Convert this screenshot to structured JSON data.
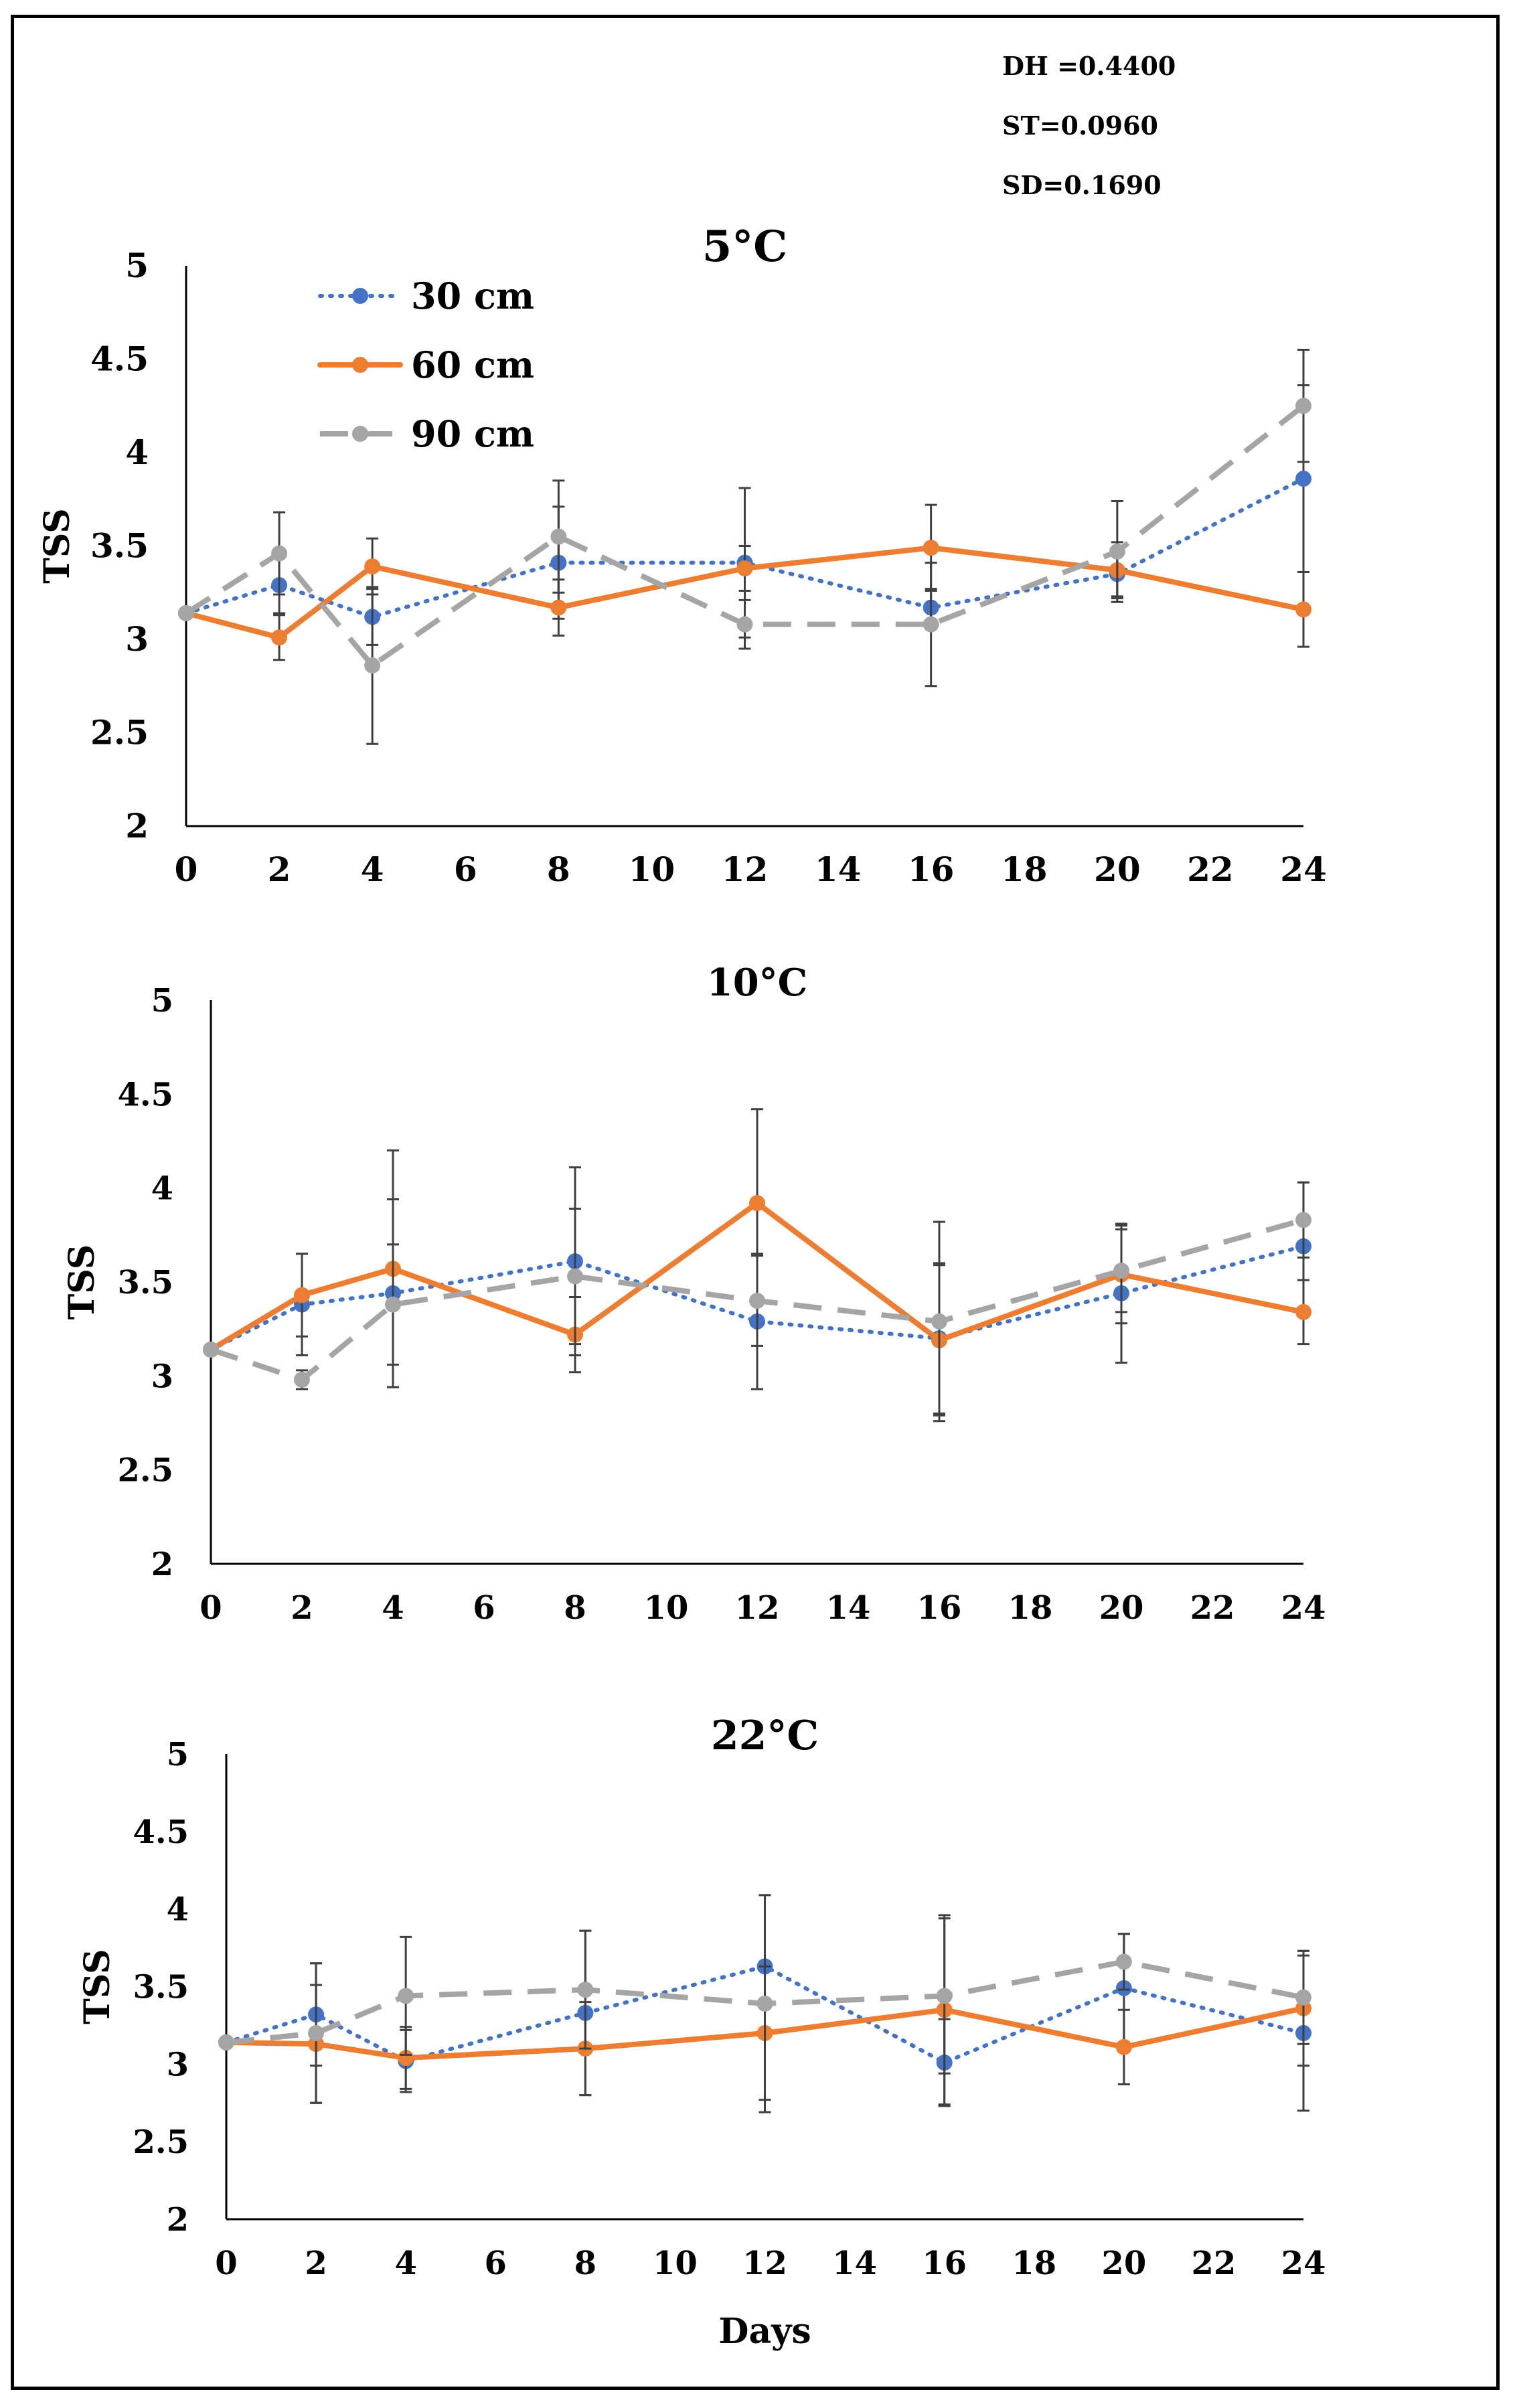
{
  "stats": {
    "dh": "DH =0.4400",
    "st": "ST=0.0960",
    "sd": "SD=0.1690"
  },
  "colors": {
    "s30": "#4472C4",
    "s60": "#ED7D31",
    "s90": "#A5A5A5",
    "axis": "#000000",
    "error_bar": "#404040"
  },
  "legend": [
    {
      "name": "30 cm",
      "style": "dotted",
      "color": "#4472C4"
    },
    {
      "name": "60 cm",
      "style": "solid",
      "color": "#ED7D31"
    },
    {
      "name": "90 cm",
      "style": "dashed",
      "color": "#A5A5A5"
    }
  ],
  "chart_data": [
    {
      "type": "line",
      "title": "5°C",
      "xlabel": "",
      "ylabel": "TSS",
      "xlim": [
        0,
        24
      ],
      "ylim": [
        2,
        5
      ],
      "xticks": [
        0,
        2,
        4,
        6,
        8,
        10,
        12,
        14,
        16,
        18,
        20,
        22,
        24
      ],
      "yticks": [
        2,
        2.5,
        3,
        3.5,
        4,
        4.5,
        5
      ],
      "x": [
        0,
        2,
        4,
        8,
        12,
        16,
        20,
        24
      ],
      "series": [
        {
          "name": "30 cm",
          "values": [
            3.14,
            3.29,
            3.12,
            3.41,
            3.41,
            3.17,
            3.35,
            3.86
          ],
          "errors": [
            0,
            0.15,
            0.15,
            0.3,
            0.4,
            0.1,
            0.12,
            0.5
          ]
        },
        {
          "name": "60 cm",
          "values": [
            3.14,
            3.01,
            3.39,
            3.17,
            3.38,
            3.49,
            3.37,
            3.16
          ],
          "errors": [
            0,
            0.12,
            0.15,
            0.15,
            0.12,
            0.23,
            0.15,
            0.2
          ]
        },
        {
          "name": "90 cm",
          "values": [
            3.14,
            3.46,
            2.86,
            3.55,
            3.08,
            3.08,
            3.47,
            4.25
          ],
          "errors": [
            0,
            0.22,
            0.42,
            0.3,
            0.13,
            0.33,
            0.27,
            0.3
          ]
        }
      ]
    },
    {
      "type": "line",
      "title": "10°C",
      "xlabel": "",
      "ylabel": "TSS",
      "xlim": [
        0,
        24
      ],
      "ylim": [
        2,
        5
      ],
      "xticks": [
        0,
        2,
        4,
        6,
        8,
        10,
        12,
        14,
        16,
        18,
        20,
        22,
        24
      ],
      "yticks": [
        2,
        2.5,
        3,
        3.5,
        4,
        4.5,
        5
      ],
      "x": [
        0,
        2,
        4,
        8,
        12,
        16,
        20,
        24
      ],
      "series": [
        {
          "name": "30 cm",
          "values": [
            3.14,
            3.38,
            3.44,
            3.61,
            3.29,
            3.2,
            3.44,
            3.69
          ],
          "errors": [
            0,
            0.27,
            0.5,
            0.5,
            0.36,
            0.4,
            0.37,
            0.34
          ]
        },
        {
          "name": "60 cm",
          "values": [
            3.14,
            3.43,
            3.57,
            3.22,
            3.92,
            3.19,
            3.54,
            3.34
          ],
          "errors": [
            0,
            0.22,
            0.63,
            0.2,
            0.5,
            0.4,
            0.26,
            0.17
          ]
        },
        {
          "name": "90 cm",
          "values": [
            3.14,
            2.98,
            3.38,
            3.53,
            3.4,
            3.29,
            3.56,
            3.83
          ],
          "errors": [
            0,
            0.05,
            0.32,
            0.36,
            0.24,
            0.53,
            0.22,
            0.2
          ]
        }
      ]
    },
    {
      "type": "line",
      "title": "22°C",
      "xlabel": "Days",
      "ylabel": "TSS",
      "xlim": [
        0,
        24
      ],
      "ylim": [
        2,
        5
      ],
      "xticks": [
        0,
        2,
        4,
        6,
        8,
        10,
        12,
        14,
        16,
        18,
        20,
        22,
        24
      ],
      "yticks": [
        2,
        2.5,
        3,
        3.5,
        4,
        4.5,
        5
      ],
      "x": [
        0,
        2,
        4,
        8,
        12,
        16,
        20,
        24
      ],
      "series": [
        {
          "name": "30 cm",
          "values": [
            3.14,
            3.32,
            3.02,
            3.33,
            3.63,
            3.01,
            3.49,
            3.2
          ],
          "errors": [
            0,
            0.33,
            0.2,
            0.53,
            0.46,
            0.28,
            0.35,
            0.5
          ]
        },
        {
          "name": "60 cm",
          "values": [
            3.14,
            3.13,
            3.04,
            3.1,
            3.2,
            3.35,
            3.11,
            3.36
          ],
          "errors": [
            0,
            0.38,
            0.2,
            0.3,
            0.43,
            0.61,
            0.24,
            0.37
          ]
        },
        {
          "name": "90 cm",
          "values": [
            3.14,
            3.2,
            3.44,
            3.48,
            3.39,
            3.44,
            3.66,
            3.43
          ],
          "errors": [
            0,
            0.45,
            0.38,
            0.38,
            0.7,
            0.5,
            0.18,
            0.3
          ]
        }
      ]
    }
  ]
}
